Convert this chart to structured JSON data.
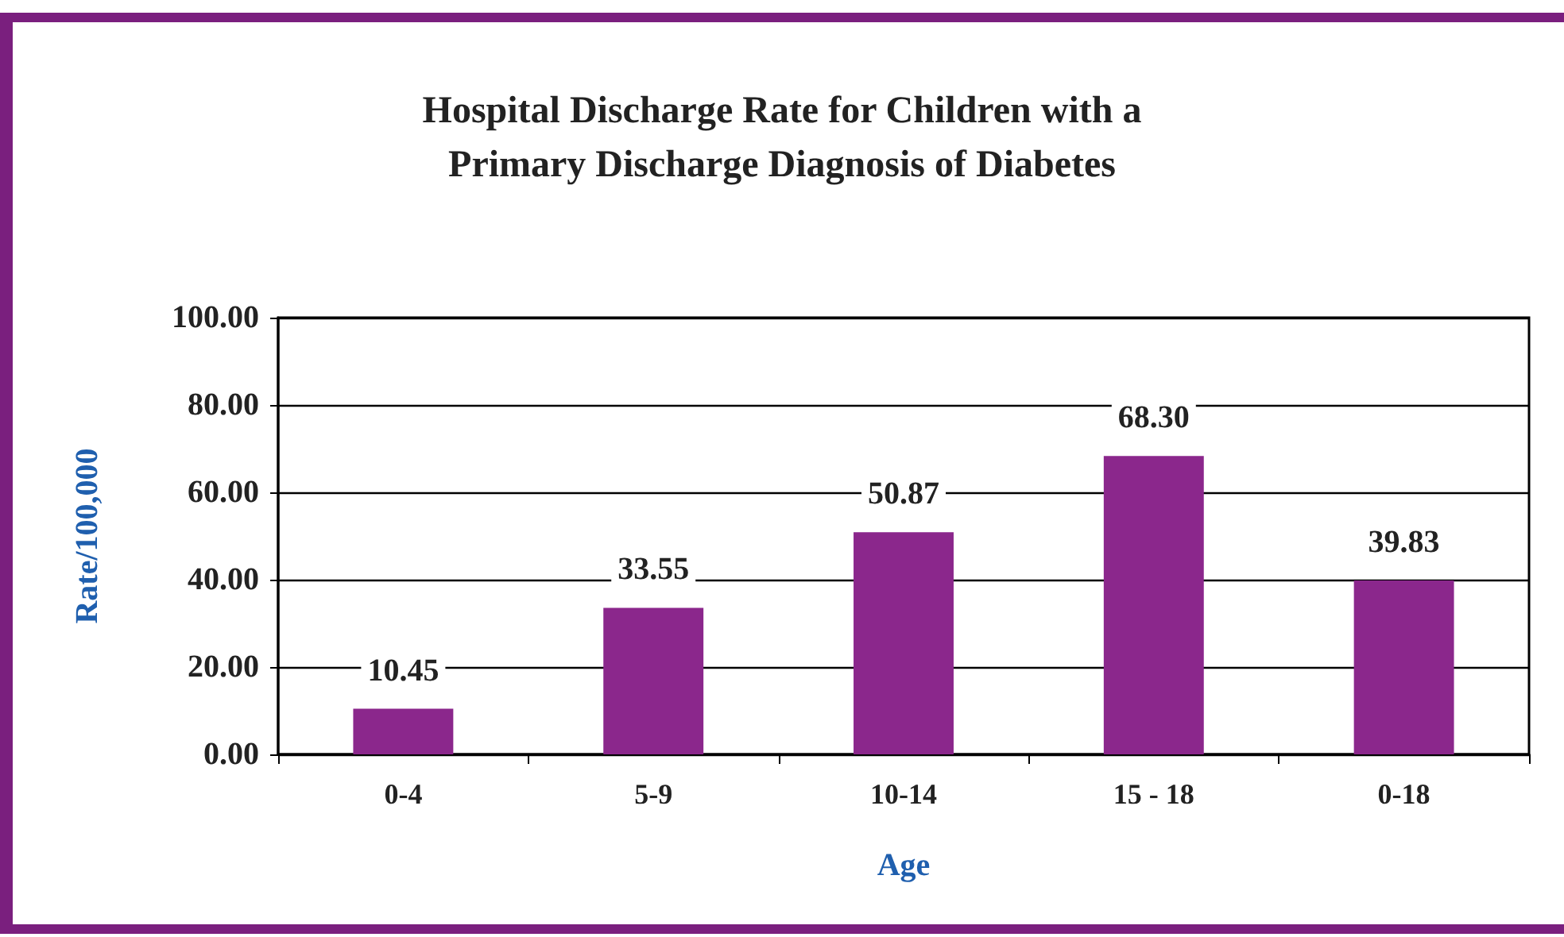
{
  "chart_data": {
    "type": "bar",
    "title": "Hospital Discharge Rate for Children with a\nPrimary Discharge Diagnosis of Diabetes",
    "xlabel": "Age",
    "ylabel": "Rate/100,000",
    "categories": [
      "0-4",
      "5-9",
      "10-14",
      "15 - 18",
      "0-18"
    ],
    "values": [
      10.45,
      33.55,
      50.87,
      68.3,
      39.83
    ],
    "value_labels": [
      "10.45",
      "33.55",
      "50.87",
      "68.30",
      "39.83"
    ],
    "color": "#8b278c",
    "ylim": [
      0,
      100
    ],
    "yticks": [
      {
        "value": 0,
        "label": "0.00"
      },
      {
        "value": 20,
        "label": "20.00"
      },
      {
        "value": 40,
        "label": "40.00"
      },
      {
        "value": 60,
        "label": "60.00"
      },
      {
        "value": 80,
        "label": "80.00"
      },
      {
        "value": 100,
        "label": "100.00"
      }
    ],
    "grid": "y"
  }
}
